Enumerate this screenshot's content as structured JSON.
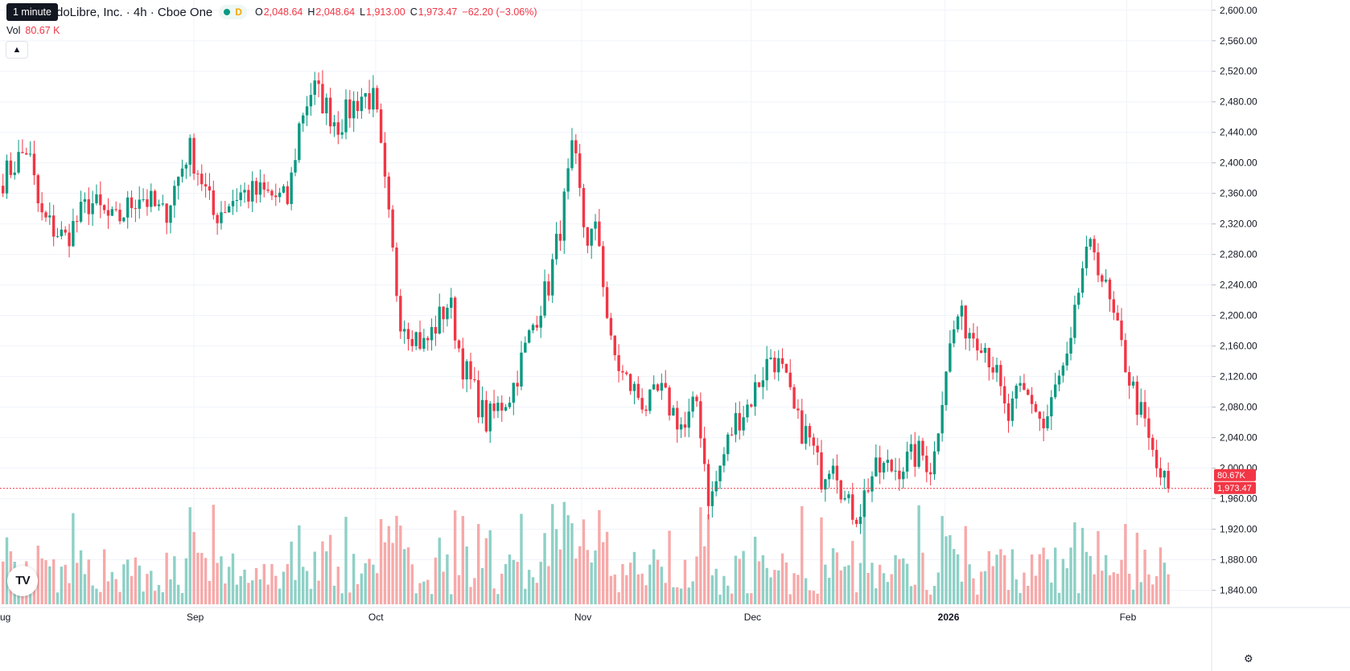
{
  "header": {
    "tooltip": "1 minute",
    "title": "doLibre, Inc. · 4h · Cboe One",
    "d_chip": "D",
    "ohlc": {
      "o_label": "O",
      "o": "2,048.64",
      "h_label": "H",
      "h": "2,048.64",
      "l_label": "L",
      "l": "1,913.00",
      "c_label": "C",
      "c": "1,973.47"
    },
    "change": "−62.20 (−3.06%)"
  },
  "volume": {
    "label": "Vol",
    "value": "80.67 K"
  },
  "collapse_icon": "chevron-up-icon",
  "logo_text": "TV",
  "settings_icon": "gear-icon",
  "colors": {
    "up": "#089981",
    "down": "#f23645",
    "vol_up": "#8ed0c6",
    "vol_down": "#f7a9a9",
    "grid": "#f0f3fa",
    "accent": "#f23645"
  },
  "chart_data": {
    "type": "candlestick",
    "interval": "4h",
    "price_axis": {
      "ylim": [
        1830,
        2610
      ],
      "ticks": [
        "2,600.00",
        "2,560.00",
        "2,520.00",
        "2,480.00",
        "2,440.00",
        "2,400.00",
        "2,360.00",
        "2,320.00",
        "2,280.00",
        "2,240.00",
        "2,200.00",
        "2,160.00",
        "2,120.00",
        "2,080.00",
        "2,040.00",
        "2,000.00",
        "1,960.00",
        "1,920.00",
        "1,880.00",
        "1,840.00"
      ]
    },
    "time_axis": {
      "labels": [
        "ug",
        "Sep",
        "Oct",
        "Nov",
        "Dec",
        "2026",
        "Feb"
      ],
      "label_positions": [
        0.0,
        0.16,
        0.31,
        0.48,
        0.62,
        0.78,
        0.93
      ]
    },
    "last_price": {
      "price": 1973.47,
      "label": "1,973.47",
      "volume_label": "80.67K"
    },
    "anchors": [
      [
        0.0,
        2380
      ],
      [
        0.02,
        2420
      ],
      [
        0.03,
        2330
      ],
      [
        0.05,
        2300
      ],
      [
        0.07,
        2350
      ],
      [
        0.09,
        2320
      ],
      [
        0.11,
        2360
      ],
      [
        0.13,
        2330
      ],
      [
        0.15,
        2420
      ],
      [
        0.16,
        2380
      ],
      [
        0.17,
        2330
      ],
      [
        0.19,
        2360
      ],
      [
        0.21,
        2360
      ],
      [
        0.23,
        2350
      ],
      [
        0.24,
        2460
      ],
      [
        0.25,
        2500
      ],
      [
        0.27,
        2450
      ],
      [
        0.29,
        2490
      ],
      [
        0.3,
        2480
      ],
      [
        0.31,
        2340
      ],
      [
        0.32,
        2200
      ],
      [
        0.34,
        2160
      ],
      [
        0.36,
        2220
      ],
      [
        0.37,
        2140
      ],
      [
        0.39,
        2060
      ],
      [
        0.4,
        2080
      ],
      [
        0.41,
        2100
      ],
      [
        0.42,
        2150
      ],
      [
        0.43,
        2200
      ],
      [
        0.44,
        2240
      ],
      [
        0.45,
        2320
      ],
      [
        0.46,
        2420
      ],
      [
        0.47,
        2300
      ],
      [
        0.48,
        2310
      ],
      [
        0.49,
        2160
      ],
      [
        0.5,
        2120
      ],
      [
        0.52,
        2080
      ],
      [
        0.53,
        2100
      ],
      [
        0.55,
        2050
      ],
      [
        0.56,
        2090
      ],
      [
        0.57,
        1950
      ],
      [
        0.58,
        2010
      ],
      [
        0.59,
        2060
      ],
      [
        0.6,
        2080
      ],
      [
        0.62,
        2150
      ],
      [
        0.63,
        2120
      ],
      [
        0.64,
        2060
      ],
      [
        0.65,
        2040
      ],
      [
        0.66,
        1990
      ],
      [
        0.67,
        2020
      ],
      [
        0.68,
        1950
      ],
      [
        0.69,
        1940
      ],
      [
        0.7,
        1990
      ],
      [
        0.71,
        2000
      ],
      [
        0.72,
        2000
      ],
      [
        0.73,
        2010
      ],
      [
        0.74,
        2020
      ],
      [
        0.75,
        2000
      ],
      [
        0.76,
        2130
      ],
      [
        0.77,
        2200
      ],
      [
        0.78,
        2180
      ],
      [
        0.79,
        2170
      ],
      [
        0.8,
        2130
      ],
      [
        0.81,
        2060
      ],
      [
        0.82,
        2100
      ],
      [
        0.83,
        2090
      ],
      [
        0.84,
        2050
      ],
      [
        0.85,
        2110
      ],
      [
        0.86,
        2140
      ],
      [
        0.87,
        2260
      ],
      [
        0.88,
        2290
      ],
      [
        0.89,
        2230
      ],
      [
        0.9,
        2170
      ],
      [
        0.91,
        2110
      ],
      [
        0.92,
        2060
      ],
      [
        0.93,
        2000
      ],
      [
        0.94,
        1973
      ]
    ]
  }
}
